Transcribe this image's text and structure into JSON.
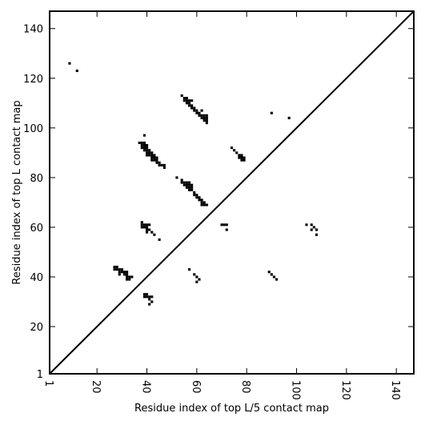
{
  "chart_data": {
    "type": "scatter",
    "title": "",
    "xlabel": "Residue index of top L/5 contact map",
    "ylabel": "Residue index of top L contact map",
    "xlim": [
      1,
      147
    ],
    "ylim": [
      1,
      147
    ],
    "xticks": [
      1,
      20,
      40,
      60,
      80,
      100,
      120,
      140
    ],
    "yticks": [
      1,
      20,
      40,
      60,
      80,
      100,
      120,
      140
    ],
    "xtick_labels": [
      "1",
      "20",
      "40",
      "60",
      "80",
      "100",
      "120",
      "140"
    ],
    "ytick_labels": [
      "1",
      "20",
      "40",
      "60",
      "80",
      "100",
      "120",
      "140"
    ],
    "grid": false,
    "diagonal": {
      "from": [
        1,
        1
      ],
      "to": [
        147,
        147
      ]
    },
    "marker_color": "#000000",
    "series": [
      {
        "points": [
          [
            9,
            126
          ],
          [
            12,
            123
          ],
          [
            54,
            113
          ],
          [
            55,
            112
          ],
          [
            56,
            112
          ],
          [
            55,
            111
          ],
          [
            56,
            111
          ],
          [
            57,
            111
          ],
          [
            58,
            111
          ],
          [
            56,
            110
          ],
          [
            57,
            110
          ],
          [
            57,
            109
          ],
          [
            58,
            109
          ],
          [
            58,
            108
          ],
          [
            59,
            108
          ],
          [
            59,
            107
          ],
          [
            60,
            107
          ],
          [
            60,
            106
          ],
          [
            61,
            106
          ],
          [
            62,
            107
          ],
          [
            61,
            105
          ],
          [
            62,
            105
          ],
          [
            63,
            105
          ],
          [
            64,
            105
          ],
          [
            62,
            104
          ],
          [
            63,
            104
          ],
          [
            64,
            104
          ],
          [
            63,
            103
          ],
          [
            64,
            103
          ],
          [
            64,
            102
          ],
          [
            90,
            106
          ],
          [
            97,
            104
          ],
          [
            39,
            97
          ],
          [
            37,
            94
          ],
          [
            38,
            94
          ],
          [
            39,
            94
          ],
          [
            38,
            93
          ],
          [
            39,
            93
          ],
          [
            40,
            93
          ],
          [
            38,
            92
          ],
          [
            39,
            92
          ],
          [
            40,
            92
          ],
          [
            39,
            91
          ],
          [
            40,
            91
          ],
          [
            41,
            91
          ],
          [
            40,
            90
          ],
          [
            41,
            90
          ],
          [
            42,
            90
          ],
          [
            40,
            89
          ],
          [
            41,
            89
          ],
          [
            42,
            89
          ],
          [
            43,
            89
          ],
          [
            42,
            88
          ],
          [
            43,
            88
          ],
          [
            44,
            88
          ],
          [
            42,
            87
          ],
          [
            43,
            87
          ],
          [
            44,
            87
          ],
          [
            44,
            86
          ],
          [
            45,
            86
          ],
          [
            45,
            85
          ],
          [
            46,
            85
          ],
          [
            47,
            85
          ],
          [
            47,
            84
          ],
          [
            74,
            92
          ],
          [
            75,
            91
          ],
          [
            76,
            90
          ],
          [
            77,
            89
          ],
          [
            78,
            89
          ],
          [
            77,
            88
          ],
          [
            78,
            88
          ],
          [
            79,
            88
          ],
          [
            78,
            87
          ],
          [
            79,
            87
          ],
          [
            52,
            80
          ],
          [
            54,
            79
          ],
          [
            54,
            78
          ],
          [
            55,
            78
          ],
          [
            56,
            78
          ],
          [
            57,
            78
          ],
          [
            55,
            77
          ],
          [
            56,
            77
          ],
          [
            57,
            77
          ],
          [
            58,
            77
          ],
          [
            56,
            76
          ],
          [
            57,
            76
          ],
          [
            58,
            76
          ],
          [
            57,
            75
          ],
          [
            58,
            75
          ],
          [
            59,
            74
          ],
          [
            59,
            73
          ],
          [
            60,
            73
          ],
          [
            60,
            72
          ],
          [
            61,
            72
          ],
          [
            61,
            71
          ],
          [
            62,
            71
          ],
          [
            62,
            70
          ],
          [
            63,
            70
          ],
          [
            62,
            69
          ],
          [
            63,
            69
          ],
          [
            64,
            69
          ],
          [
            38,
            62
          ],
          [
            38,
            61
          ],
          [
            39,
            61
          ],
          [
            40,
            61
          ],
          [
            41,
            61
          ],
          [
            38,
            60
          ],
          [
            39,
            60
          ],
          [
            40,
            60
          ],
          [
            40,
            59
          ],
          [
            41,
            59
          ],
          [
            40,
            58
          ],
          [
            42,
            58
          ],
          [
            43,
            57
          ],
          [
            45,
            55
          ],
          [
            70,
            61
          ],
          [
            71,
            61
          ],
          [
            72,
            61
          ],
          [
            72,
            59
          ],
          [
            104,
            61
          ],
          [
            106,
            61
          ],
          [
            107,
            60
          ],
          [
            106,
            59
          ],
          [
            108,
            59
          ],
          [
            108,
            57
          ],
          [
            27,
            44
          ],
          [
            28,
            44
          ],
          [
            27,
            43
          ],
          [
            28,
            43
          ],
          [
            29,
            43
          ],
          [
            30,
            43
          ],
          [
            29,
            42
          ],
          [
            30,
            42
          ],
          [
            31,
            42
          ],
          [
            32,
            42
          ],
          [
            29,
            41
          ],
          [
            31,
            41
          ],
          [
            32,
            41
          ],
          [
            32,
            40
          ],
          [
            33,
            40
          ],
          [
            34,
            40
          ],
          [
            32,
            39
          ],
          [
            33,
            39
          ],
          [
            57,
            43
          ],
          [
            59,
            41
          ],
          [
            60,
            40
          ],
          [
            61,
            39
          ],
          [
            60,
            38
          ],
          [
            89,
            42
          ],
          [
            90,
            41
          ],
          [
            91,
            40
          ],
          [
            92,
            39
          ],
          [
            39,
            33
          ],
          [
            40,
            33
          ],
          [
            39,
            32
          ],
          [
            40,
            32
          ],
          [
            41,
            32
          ],
          [
            42,
            32
          ],
          [
            41,
            31
          ],
          [
            42,
            30
          ],
          [
            41,
            29
          ]
        ]
      }
    ]
  }
}
